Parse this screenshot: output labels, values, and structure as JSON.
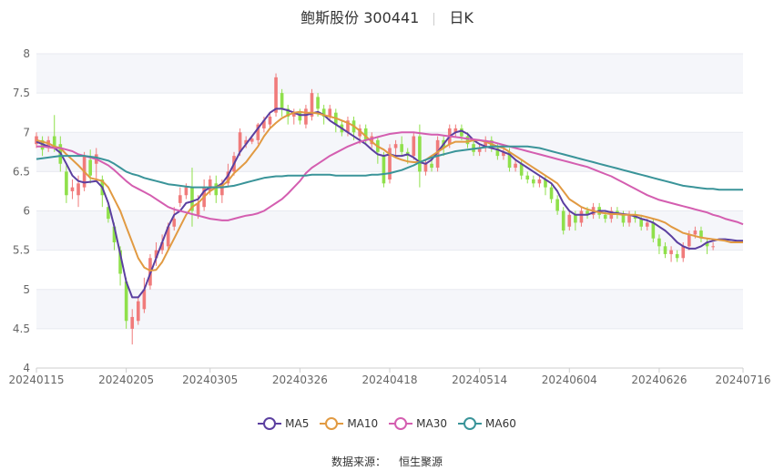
{
  "header": {
    "title": "鲍斯股份 300441",
    "period": "日K"
  },
  "source": {
    "label": "数据来源：",
    "value": "恒生聚源"
  },
  "chart_data": {
    "type": "candlestick",
    "ylim": [
      4,
      8
    ],
    "yticks": [
      4,
      4.5,
      5,
      5.5,
      6,
      6.5,
      7,
      7.5,
      8
    ],
    "xticks": [
      {
        "label": "20240115",
        "index": 0
      },
      {
        "label": "20240205",
        "index": 15
      },
      {
        "label": "20240305",
        "index": 29
      },
      {
        "label": "20240326",
        "index": 44
      },
      {
        "label": "20240418",
        "index": 59
      },
      {
        "label": "20240514",
        "index": 74
      },
      {
        "label": "20240604",
        "index": 89
      },
      {
        "label": "20240626",
        "index": 104
      },
      {
        "label": "20240716",
        "index": 118
      }
    ],
    "count": 119,
    "candles": [
      {
        "o": 6.85,
        "c": 6.95,
        "h": 7.0,
        "l": 6.8
      },
      {
        "o": 6.9,
        "c": 6.78,
        "h": 6.95,
        "l": 6.7
      },
      {
        "o": 6.8,
        "c": 6.9,
        "h": 6.95,
        "l": 6.75
      },
      {
        "o": 6.95,
        "c": 6.8,
        "h": 7.22,
        "l": 6.75
      },
      {
        "o": 6.85,
        "c": 6.6,
        "h": 6.95,
        "l": 6.5
      },
      {
        "o": 6.5,
        "c": 6.2,
        "h": 6.6,
        "l": 6.1
      },
      {
        "o": 6.25,
        "c": 6.3,
        "h": 6.4,
        "l": 6.15
      },
      {
        "o": 6.2,
        "c": 6.35,
        "h": 6.45,
        "l": 6.05
      },
      {
        "o": 6.3,
        "c": 6.7,
        "h": 6.75,
        "l": 6.25
      },
      {
        "o": 6.65,
        "c": 6.45,
        "h": 6.78,
        "l": 6.35
      },
      {
        "o": 6.6,
        "c": 6.72,
        "h": 6.8,
        "l": 6.4
      },
      {
        "o": 6.4,
        "c": 6.2,
        "h": 6.45,
        "l": 6.05
      },
      {
        "o": 6.05,
        "c": 5.9,
        "h": 6.1,
        "l": 5.85
      },
      {
        "o": 5.8,
        "c": 5.6,
        "h": 5.85,
        "l": 5.5
      },
      {
        "o": 5.5,
        "c": 5.2,
        "h": 5.55,
        "l": 5.05
      },
      {
        "o": 5.1,
        "c": 4.6,
        "h": 5.15,
        "l": 4.5
      },
      {
        "o": 4.5,
        "c": 4.65,
        "h": 4.75,
        "l": 4.3
      },
      {
        "o": 4.6,
        "c": 4.85,
        "h": 4.9,
        "l": 4.55
      },
      {
        "o": 4.75,
        "c": 5.0,
        "h": 5.15,
        "l": 4.7
      },
      {
        "o": 5.05,
        "c": 5.4,
        "h": 5.45,
        "l": 5.0
      },
      {
        "o": 5.4,
        "c": 5.5,
        "h": 5.6,
        "l": 5.3
      },
      {
        "o": 5.5,
        "c": 5.6,
        "h": 5.7,
        "l": 5.45
      },
      {
        "o": 5.55,
        "c": 5.8,
        "h": 5.85,
        "l": 5.5
      },
      {
        "o": 5.8,
        "c": 5.9,
        "h": 6.05,
        "l": 5.75
      },
      {
        "o": 6.1,
        "c": 6.2,
        "h": 6.3,
        "l": 6.05
      },
      {
        "o": 6.2,
        "c": 6.3,
        "h": 6.35,
        "l": 6.15
      },
      {
        "o": 6.3,
        "c": 6.0,
        "h": 6.55,
        "l": 5.8
      },
      {
        "o": 5.95,
        "c": 6.1,
        "h": 6.2,
        "l": 5.9
      },
      {
        "o": 6.05,
        "c": 6.3,
        "h": 6.4,
        "l": 6.0
      },
      {
        "o": 6.25,
        "c": 6.4,
        "h": 6.45,
        "l": 6.2
      },
      {
        "o": 6.35,
        "c": 6.2,
        "h": 6.45,
        "l": 6.1
      },
      {
        "o": 6.2,
        "c": 6.35,
        "h": 6.4,
        "l": 6.1
      },
      {
        "o": 6.35,
        "c": 6.5,
        "h": 6.6,
        "l": 6.3
      },
      {
        "o": 6.5,
        "c": 6.7,
        "h": 6.75,
        "l": 6.45
      },
      {
        "o": 6.75,
        "c": 7.0,
        "h": 7.05,
        "l": 6.7
      },
      {
        "o": 6.85,
        "c": 6.9,
        "h": 6.95,
        "l": 6.8
      },
      {
        "o": 6.88,
        "c": 6.92,
        "h": 6.96,
        "l": 6.85
      },
      {
        "o": 6.9,
        "c": 7.1,
        "h": 7.12,
        "l": 6.85
      },
      {
        "o": 7.05,
        "c": 7.15,
        "h": 7.2,
        "l": 7.0
      },
      {
        "o": 7.1,
        "c": 7.2,
        "h": 7.25,
        "l": 7.05
      },
      {
        "o": 7.25,
        "c": 7.7,
        "h": 7.75,
        "l": 7.2
      },
      {
        "o": 7.5,
        "c": 7.3,
        "h": 7.55,
        "l": 7.2
      },
      {
        "o": 7.3,
        "c": 7.2,
        "h": 7.35,
        "l": 7.1
      },
      {
        "o": 7.2,
        "c": 7.25,
        "h": 7.3,
        "l": 7.1
      },
      {
        "o": 7.25,
        "c": 7.15,
        "h": 7.3,
        "l": 7.1
      },
      {
        "o": 7.1,
        "c": 7.3,
        "h": 7.35,
        "l": 7.05
      },
      {
        "o": 7.2,
        "c": 7.5,
        "h": 7.55,
        "l": 7.15
      },
      {
        "o": 7.45,
        "c": 7.3,
        "h": 7.5,
        "l": 7.2
      },
      {
        "o": 7.3,
        "c": 7.2,
        "h": 7.35,
        "l": 7.1
      },
      {
        "o": 7.2,
        "c": 7.3,
        "h": 7.35,
        "l": 7.15
      },
      {
        "o": 7.25,
        "c": 7.1,
        "h": 7.3,
        "l": 7.0
      },
      {
        "o": 7.1,
        "c": 7.0,
        "h": 7.15,
        "l": 6.95
      },
      {
        "o": 7.0,
        "c": 7.15,
        "h": 7.2,
        "l": 6.95
      },
      {
        "o": 7.15,
        "c": 7.0,
        "h": 7.2,
        "l": 6.9
      },
      {
        "o": 6.95,
        "c": 7.05,
        "h": 7.1,
        "l": 6.85
      },
      {
        "o": 7.05,
        "c": 6.9,
        "h": 7.1,
        "l": 6.85
      },
      {
        "o": 6.85,
        "c": 6.95,
        "h": 7.0,
        "l": 6.8
      },
      {
        "o": 6.9,
        "c": 6.75,
        "h": 6.95,
        "l": 6.6
      },
      {
        "o": 6.7,
        "c": 6.35,
        "h": 6.75,
        "l": 6.3
      },
      {
        "o": 6.4,
        "c": 6.8,
        "h": 6.85,
        "l": 6.35
      },
      {
        "o": 6.8,
        "c": 6.85,
        "h": 6.9,
        "l": 6.7
      },
      {
        "o": 6.85,
        "c": 6.75,
        "h": 6.95,
        "l": 6.7
      },
      {
        "o": 6.75,
        "c": 6.7,
        "h": 6.8,
        "l": 6.6
      },
      {
        "o": 6.7,
        "c": 6.95,
        "h": 7.0,
        "l": 6.65
      },
      {
        "o": 6.95,
        "c": 6.5,
        "h": 7.1,
        "l": 6.3
      },
      {
        "o": 6.5,
        "c": 6.6,
        "h": 6.65,
        "l": 6.45
      },
      {
        "o": 6.6,
        "c": 6.55,
        "h": 6.7,
        "l": 6.5
      },
      {
        "o": 6.55,
        "c": 6.9,
        "h": 6.95,
        "l": 6.5
      },
      {
        "o": 6.9,
        "c": 6.8,
        "h": 6.95,
        "l": 6.7
      },
      {
        "o": 6.85,
        "c": 7.05,
        "h": 7.1,
        "l": 6.8
      },
      {
        "o": 7.0,
        "c": 7.05,
        "h": 7.1,
        "l": 6.95
      },
      {
        "o": 7.05,
        "c": 6.95,
        "h": 7.1,
        "l": 6.9
      },
      {
        "o": 6.95,
        "c": 6.85,
        "h": 7.0,
        "l": 6.8
      },
      {
        "o": 6.85,
        "c": 6.75,
        "h": 6.9,
        "l": 6.7
      },
      {
        "o": 6.75,
        "c": 6.8,
        "h": 6.85,
        "l": 6.7
      },
      {
        "o": 6.8,
        "c": 6.9,
        "h": 6.95,
        "l": 6.75
      },
      {
        "o": 6.9,
        "c": 6.8,
        "h": 6.95,
        "l": 6.75
      },
      {
        "o": 6.8,
        "c": 6.7,
        "h": 6.85,
        "l": 6.65
      },
      {
        "o": 6.7,
        "c": 6.75,
        "h": 6.8,
        "l": 6.65
      },
      {
        "o": 6.75,
        "c": 6.55,
        "h": 6.8,
        "l": 6.5
      },
      {
        "o": 6.55,
        "c": 6.6,
        "h": 6.65,
        "l": 6.5
      },
      {
        "o": 6.6,
        "c": 6.45,
        "h": 6.65,
        "l": 6.4
      },
      {
        "o": 6.45,
        "c": 6.4,
        "h": 6.5,
        "l": 6.35
      },
      {
        "o": 6.4,
        "c": 6.35,
        "h": 6.45,
        "l": 6.3
      },
      {
        "o": 6.35,
        "c": 6.4,
        "h": 6.45,
        "l": 6.3
      },
      {
        "o": 6.4,
        "c": 6.3,
        "h": 6.45,
        "l": 6.2
      },
      {
        "o": 6.3,
        "c": 6.15,
        "h": 6.35,
        "l": 6.1
      },
      {
        "o": 6.15,
        "c": 6.0,
        "h": 6.2,
        "l": 5.95
      },
      {
        "o": 6.0,
        "c": 5.75,
        "h": 6.05,
        "l": 5.7
      },
      {
        "o": 5.8,
        "c": 5.95,
        "h": 6.0,
        "l": 5.75
      },
      {
        "o": 5.95,
        "c": 5.85,
        "h": 6.0,
        "l": 5.75
      },
      {
        "o": 5.85,
        "c": 6.0,
        "h": 6.05,
        "l": 5.8
      },
      {
        "o": 6.0,
        "c": 5.95,
        "h": 6.05,
        "l": 5.9
      },
      {
        "o": 5.95,
        "c": 6.05,
        "h": 6.1,
        "l": 5.9
      },
      {
        "o": 6.05,
        "c": 5.95,
        "h": 6.1,
        "l": 5.9
      },
      {
        "o": 5.95,
        "c": 5.9,
        "h": 6.0,
        "l": 5.85
      },
      {
        "o": 5.9,
        "c": 6.0,
        "h": 6.05,
        "l": 5.85
      },
      {
        "o": 6.0,
        "c": 5.95,
        "h": 6.05,
        "l": 5.9
      },
      {
        "o": 5.95,
        "c": 5.85,
        "h": 6.0,
        "l": 5.8
      },
      {
        "o": 5.85,
        "c": 5.95,
        "h": 6.0,
        "l": 5.8
      },
      {
        "o": 5.95,
        "c": 5.9,
        "h": 6.0,
        "l": 5.85
      },
      {
        "o": 5.9,
        "c": 5.8,
        "h": 5.95,
        "l": 5.75
      },
      {
        "o": 5.8,
        "c": 5.85,
        "h": 5.9,
        "l": 5.75
      },
      {
        "o": 5.85,
        "c": 5.65,
        "h": 5.9,
        "l": 5.6
      },
      {
        "o": 5.65,
        "c": 5.55,
        "h": 5.7,
        "l": 5.45
      },
      {
        "o": 5.55,
        "c": 5.45,
        "h": 5.6,
        "l": 5.4
      },
      {
        "o": 5.45,
        "c": 5.5,
        "h": 5.55,
        "l": 5.35
      },
      {
        "o": 5.45,
        "c": 5.4,
        "h": 5.5,
        "l": 5.35
      },
      {
        "o": 5.4,
        "c": 5.55,
        "h": 5.6,
        "l": 5.35
      },
      {
        "o": 5.55,
        "c": 5.7,
        "h": 5.75,
        "l": 5.5
      },
      {
        "o": 5.7,
        "c": 5.75,
        "h": 5.8,
        "l": 5.65
      },
      {
        "o": 5.75,
        "c": 5.65,
        "h": 5.8,
        "l": 5.6
      },
      {
        "o": 5.6,
        "c": 5.55,
        "h": 5.65,
        "l": 5.45
      },
      {
        "o": 5.55,
        "c": 5.55,
        "h": 5.6,
        "l": 5.5
      }
    ],
    "series": [
      {
        "name": "MA5",
        "color": "#5b3fa0",
        "values": [
          6.88,
          6.85,
          6.82,
          6.8,
          6.74,
          6.6,
          6.45,
          6.38,
          6.36,
          6.37,
          6.38,
          6.3,
          6.1,
          5.8,
          5.45,
          5.1,
          4.9,
          4.9,
          5.0,
          5.2,
          5.4,
          5.6,
          5.8,
          5.95,
          6.0,
          6.1,
          6.12,
          6.15,
          6.25,
          6.3,
          6.3,
          6.35,
          6.45,
          6.6,
          6.75,
          6.85,
          6.95,
          7.05,
          7.15,
          7.25,
          7.3,
          7.3,
          7.28,
          7.25,
          7.22,
          7.22,
          7.24,
          7.26,
          7.22,
          7.15,
          7.1,
          7.05,
          7.0,
          6.95,
          6.9,
          6.85,
          6.78,
          6.72,
          6.7,
          6.72,
          6.7,
          6.7,
          6.72,
          6.68,
          6.62,
          6.6,
          6.65,
          6.75,
          6.85,
          6.95,
          7.0,
          7.02,
          6.98,
          6.9,
          6.85,
          6.82,
          6.8,
          6.78,
          6.75,
          6.72,
          6.65,
          6.6,
          6.55,
          6.5,
          6.45,
          6.4,
          6.35,
          6.25,
          6.1,
          6.0,
          5.95,
          5.95,
          5.95,
          5.98,
          6.0,
          6.0,
          5.98,
          5.97,
          5.96,
          5.95,
          5.93,
          5.9,
          5.88,
          5.85,
          5.8,
          5.75,
          5.68,
          5.6,
          5.55,
          5.52,
          5.52,
          5.55,
          5.6,
          5.62,
          5.64,
          5.64,
          5.63,
          5.62,
          5.62
        ]
      },
      {
        "name": "MA10",
        "color": "#e19a42",
        "values": [
          6.9,
          6.88,
          6.86,
          6.82,
          6.8,
          6.72,
          6.65,
          6.58,
          6.5,
          6.42,
          6.4,
          6.38,
          6.3,
          6.15,
          6.0,
          5.8,
          5.6,
          5.4,
          5.28,
          5.24,
          5.25,
          5.35,
          5.5,
          5.65,
          5.8,
          5.95,
          6.05,
          6.1,
          6.18,
          6.25,
          6.3,
          6.32,
          6.38,
          6.48,
          6.55,
          6.62,
          6.72,
          6.82,
          6.95,
          7.05,
          7.12,
          7.18,
          7.22,
          7.25,
          7.26,
          7.25,
          7.25,
          7.24,
          7.22,
          7.2,
          7.18,
          7.15,
          7.12,
          7.08,
          7.02,
          6.95,
          6.88,
          6.82,
          6.78,
          6.72,
          6.68,
          6.65,
          6.63,
          6.62,
          6.62,
          6.65,
          6.7,
          6.75,
          6.8,
          6.85,
          6.88,
          6.88,
          6.88,
          6.9,
          6.9,
          6.88,
          6.85,
          6.82,
          6.8,
          6.75,
          6.7,
          6.65,
          6.6,
          6.55,
          6.5,
          6.45,
          6.4,
          6.35,
          6.25,
          6.15,
          6.1,
          6.05,
          6.02,
          6.0,
          5.98,
          5.97,
          5.96,
          5.96,
          5.95,
          5.95,
          5.95,
          5.94,
          5.92,
          5.9,
          5.88,
          5.85,
          5.8,
          5.76,
          5.72,
          5.7,
          5.68,
          5.66,
          5.65,
          5.64,
          5.63,
          5.62,
          5.6,
          5.6,
          5.6
        ]
      },
      {
        "name": "MA30",
        "color": "#d45eb0",
        "values": [
          6.82,
          6.82,
          6.81,
          6.8,
          6.8,
          6.78,
          6.76,
          6.72,
          6.7,
          6.68,
          6.66,
          6.62,
          6.58,
          6.52,
          6.45,
          6.38,
          6.32,
          6.28,
          6.24,
          6.2,
          6.15,
          6.1,
          6.05,
          6.02,
          6.0,
          5.98,
          5.96,
          5.94,
          5.92,
          5.9,
          5.89,
          5.88,
          5.88,
          5.9,
          5.92,
          5.94,
          5.95,
          5.97,
          6.0,
          6.05,
          6.1,
          6.15,
          6.22,
          6.3,
          6.38,
          6.48,
          6.55,
          6.6,
          6.65,
          6.7,
          6.74,
          6.78,
          6.82,
          6.85,
          6.88,
          6.9,
          6.92,
          6.94,
          6.96,
          6.98,
          6.99,
          7.0,
          7.0,
          7.0,
          6.99,
          6.98,
          6.97,
          6.97,
          6.96,
          6.95,
          6.94,
          6.93,
          6.92,
          6.91,
          6.9,
          6.89,
          6.88,
          6.86,
          6.84,
          6.82,
          6.8,
          6.78,
          6.76,
          6.74,
          6.72,
          6.7,
          6.68,
          6.66,
          6.64,
          6.62,
          6.6,
          6.58,
          6.56,
          6.53,
          6.5,
          6.47,
          6.44,
          6.4,
          6.36,
          6.32,
          6.28,
          6.24,
          6.2,
          6.17,
          6.14,
          6.12,
          6.1,
          6.08,
          6.06,
          6.04,
          6.02,
          6.0,
          5.98,
          5.95,
          5.93,
          5.9,
          5.88,
          5.86,
          5.83
        ]
      },
      {
        "name": "MA60",
        "color": "#3a9499",
        "values": [
          6.66,
          6.67,
          6.68,
          6.69,
          6.7,
          6.7,
          6.7,
          6.7,
          6.7,
          6.69,
          6.68,
          6.66,
          6.64,
          6.6,
          6.55,
          6.5,
          6.47,
          6.45,
          6.42,
          6.4,
          6.38,
          6.36,
          6.34,
          6.33,
          6.32,
          6.31,
          6.3,
          6.3,
          6.3,
          6.3,
          6.3,
          6.3,
          6.31,
          6.32,
          6.34,
          6.36,
          6.38,
          6.4,
          6.42,
          6.43,
          6.44,
          6.44,
          6.45,
          6.45,
          6.45,
          6.45,
          6.46,
          6.46,
          6.46,
          6.46,
          6.45,
          6.45,
          6.45,
          6.45,
          6.45,
          6.45,
          6.46,
          6.46,
          6.47,
          6.48,
          6.5,
          6.52,
          6.55,
          6.58,
          6.62,
          6.65,
          6.68,
          6.7,
          6.72,
          6.74,
          6.76,
          6.77,
          6.78,
          6.79,
          6.8,
          6.81,
          6.82,
          6.82,
          6.82,
          6.82,
          6.82,
          6.82,
          6.82,
          6.81,
          6.8,
          6.78,
          6.76,
          6.74,
          6.72,
          6.7,
          6.68,
          6.66,
          6.64,
          6.62,
          6.6,
          6.58,
          6.56,
          6.54,
          6.52,
          6.5,
          6.48,
          6.46,
          6.44,
          6.42,
          6.4,
          6.38,
          6.36,
          6.34,
          6.32,
          6.31,
          6.3,
          6.29,
          6.28,
          6.28,
          6.27,
          6.27,
          6.27,
          6.27,
          6.27
        ]
      }
    ],
    "legend": [
      {
        "name": "MA5",
        "color": "#5b3fa0"
      },
      {
        "name": "MA10",
        "color": "#e19a42"
      },
      {
        "name": "MA30",
        "color": "#d45eb0"
      },
      {
        "name": "MA60",
        "color": "#3a9499"
      }
    ],
    "colors": {
      "up": "#f07b7b",
      "down": "#8fe04b",
      "grid_band": "#f5f6fa",
      "axis": "#cccccc",
      "tick_text": "#666666"
    },
    "legend_position": "bottom"
  }
}
